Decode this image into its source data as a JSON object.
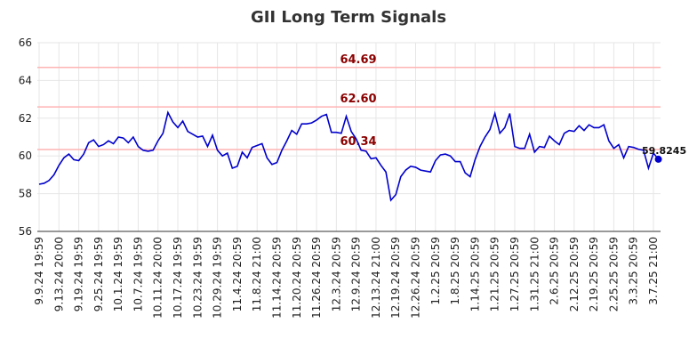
{
  "chart_data": {
    "type": "line",
    "title": "GII Long Term Signals",
    "categories": [
      "9.9.24 19:59",
      null,
      null,
      null,
      "9.13.24 20:00",
      null,
      null,
      null,
      "9.19.24 19:59",
      null,
      null,
      null,
      "9.25.24 19:59",
      null,
      null,
      null,
      "10.1.24 19:59",
      null,
      null,
      null,
      "10.7.24 19:59",
      null,
      null,
      null,
      "10.11.24 20:00",
      null,
      null,
      null,
      "10.17.24 19:59",
      null,
      null,
      null,
      "10.23.24 19:59",
      null,
      null,
      null,
      "10.29.24 19:59",
      null,
      null,
      null,
      "11.4.24 20:59",
      null,
      null,
      null,
      "11.8.24 21:00",
      null,
      null,
      null,
      "11.14.24 20:59",
      null,
      null,
      null,
      "11.20.24 20:59",
      null,
      null,
      null,
      "11.26.24 20:59",
      null,
      null,
      null,
      "12.3.24 20:59",
      null,
      null,
      null,
      "12.9.24 20:59",
      null,
      null,
      null,
      "12.13.24 21:00",
      null,
      null,
      null,
      "12.19.24 20:59",
      null,
      null,
      null,
      "12.26.24 20:59",
      null,
      null,
      null,
      "1.2.25 20:59",
      null,
      null,
      null,
      "1.8.25 20:59",
      null,
      null,
      null,
      "1.14.25 20:59",
      null,
      null,
      null,
      "1.21.25 20:59",
      null,
      null,
      null,
      "1.27.25 20:59",
      null,
      null,
      null,
      "1.31.25 21:00",
      null,
      null,
      null,
      "2.6.25 20:59",
      null,
      null,
      null,
      "2.12.25 20:59",
      null,
      null,
      null,
      "2.19.25 20:59",
      null,
      null,
      null,
      "2.25.25 20:59",
      null,
      null,
      null,
      "3.3.25 20:59",
      null,
      null,
      null,
      "3.7.25 21:00",
      null
    ],
    "series": [
      {
        "name": "GII",
        "color": "#0000cc",
        "values": [
          58.5,
          58.55,
          58.7,
          59.0,
          59.5,
          59.9,
          60.1,
          59.8,
          59.75,
          60.1,
          60.7,
          60.85,
          60.5,
          60.6,
          60.8,
          60.65,
          61.0,
          60.95,
          60.7,
          61.0,
          60.5,
          60.3,
          60.25,
          60.3,
          60.8,
          61.2,
          62.3,
          61.8,
          61.5,
          61.85,
          61.3,
          61.15,
          61.0,
          61.05,
          60.5,
          61.1,
          60.3,
          60.0,
          60.15,
          59.35,
          59.45,
          60.2,
          59.9,
          60.45,
          60.55,
          60.65,
          59.9,
          59.55,
          59.65,
          60.3,
          60.8,
          61.35,
          61.15,
          61.7,
          61.7,
          61.75,
          61.9,
          62.1,
          62.2,
          61.25,
          61.25,
          61.2,
          62.1,
          61.3,
          60.9,
          60.3,
          60.25,
          59.85,
          59.9,
          59.5,
          59.15,
          57.65,
          57.95,
          58.9,
          59.25,
          59.45,
          59.4,
          59.25,
          59.2,
          59.15,
          59.75,
          60.05,
          60.1,
          60.0,
          59.7,
          59.7,
          59.1,
          58.9,
          59.8,
          60.5,
          61.0,
          61.4,
          62.25,
          61.2,
          61.5,
          62.25,
          60.5,
          60.4,
          60.4,
          61.15,
          60.2,
          60.5,
          60.45,
          61.05,
          60.8,
          60.6,
          61.2,
          61.35,
          61.3,
          61.6,
          61.35,
          61.65,
          61.5,
          61.5,
          61.65,
          60.8,
          60.4,
          60.6,
          59.9,
          60.5,
          60.45,
          60.35,
          60.3,
          59.35,
          60.15,
          59.8245
        ]
      }
    ],
    "reference_lines": [
      {
        "value": 64.69,
        "label": "64.69"
      },
      {
        "value": 62.6,
        "label": "62.60"
      },
      {
        "value": 60.34,
        "label": "60.34"
      }
    ],
    "reference_color": "#ffb3b3",
    "reference_label_color": "#8b0000",
    "ylim": [
      56,
      66
    ],
    "yticks": [
      56,
      58,
      60,
      62,
      64,
      66
    ],
    "grid": true
  }
}
